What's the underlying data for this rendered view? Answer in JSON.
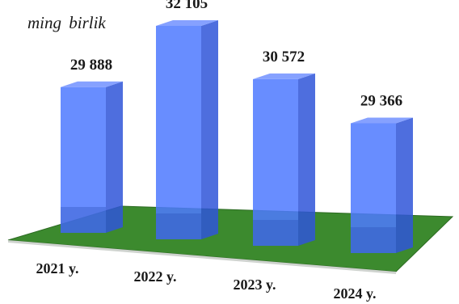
{
  "chart_data": {
    "type": "bar",
    "unit_label": "ming  birlik",
    "categories": [
      "2021 y.",
      "2022 y.",
      "2023 y.",
      "2024 y."
    ],
    "values": [
      29888,
      32105,
      30572,
      29366
    ],
    "value_labels": [
      "29 888",
      "32 105",
      "30 572",
      "29 366"
    ],
    "style": "3d",
    "grid": false,
    "legend": "none",
    "colors": {
      "bar_front": "#4d79ff",
      "bar_side": "#2f55d8",
      "bar_top": "#7f9cff",
      "floor": "#3c8a2e",
      "label": "#1a1a1a"
    }
  }
}
